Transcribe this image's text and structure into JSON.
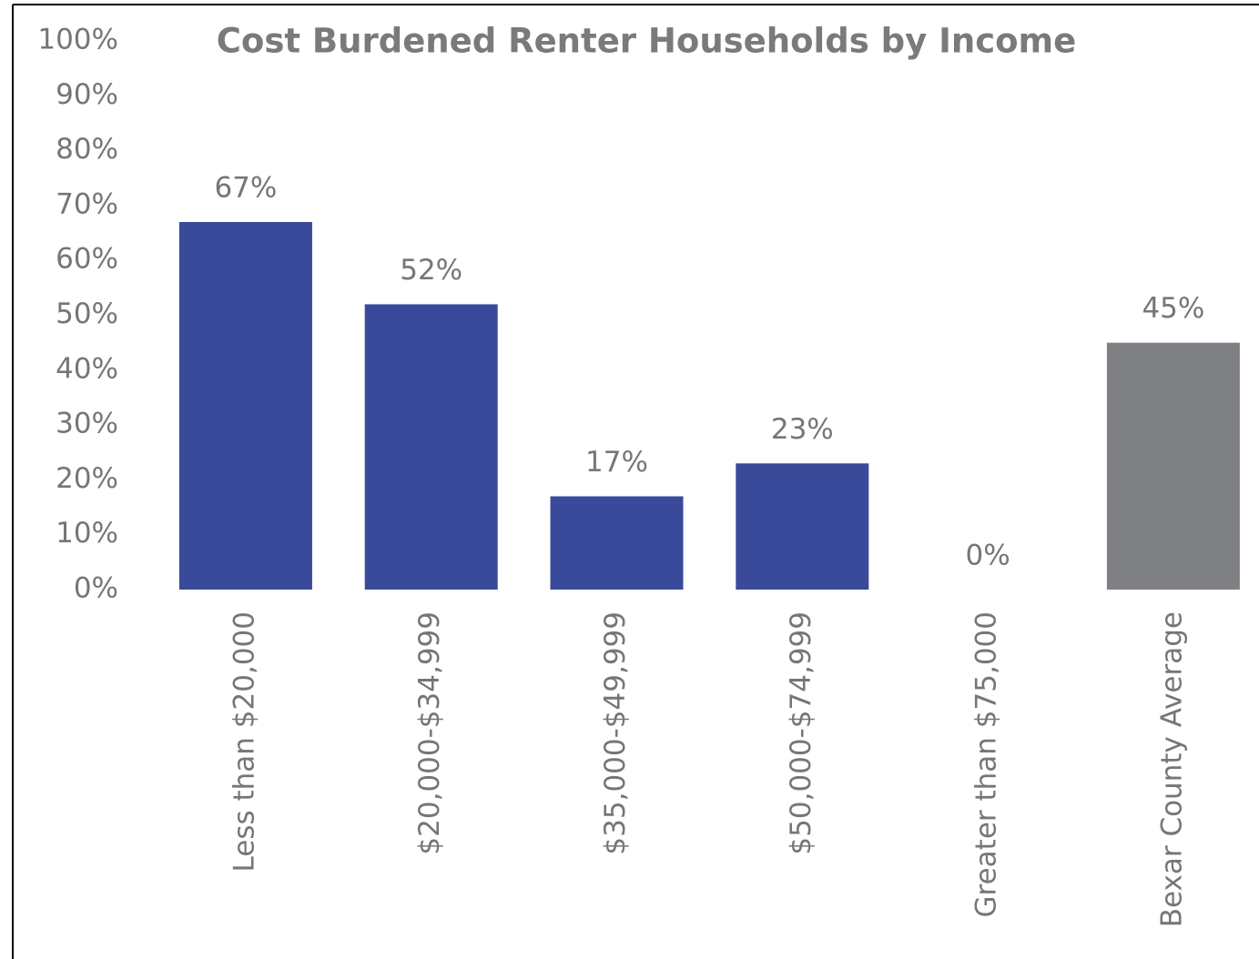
{
  "chart_data": {
    "type": "bar",
    "title": "Cost Burdened Renter Households by Income",
    "categories": [
      "Less than $20,000",
      "$20,000-$34,999",
      "$35,000-$49,999",
      "$50,000-$74,999",
      "Greater than $75,000",
      "Bexar County Average"
    ],
    "values": [
      67,
      52,
      17,
      23,
      0,
      45
    ],
    "value_labels": [
      "67%",
      "52%",
      "17%",
      "23%",
      "0%",
      "45%"
    ],
    "colors": [
      "#3a4a9a",
      "#3a4a9a",
      "#3a4a9a",
      "#3a4a9a",
      "#3a4a9a",
      "#7f8084"
    ],
    "ylim": [
      0,
      100
    ],
    "yticks": [
      {
        "value": 0,
        "label": "0%"
      },
      {
        "value": 10,
        "label": "10%"
      },
      {
        "value": 20,
        "label": "20%"
      },
      {
        "value": 30,
        "label": "30%"
      },
      {
        "value": 40,
        "label": "40%"
      },
      {
        "value": 50,
        "label": "50%"
      },
      {
        "value": 60,
        "label": "60%"
      },
      {
        "value": 70,
        "label": "70%"
      },
      {
        "value": 80,
        "label": "80%"
      },
      {
        "value": 90,
        "label": "90%"
      },
      {
        "value": 100,
        "label": "100%"
      }
    ],
    "grid": false
  }
}
